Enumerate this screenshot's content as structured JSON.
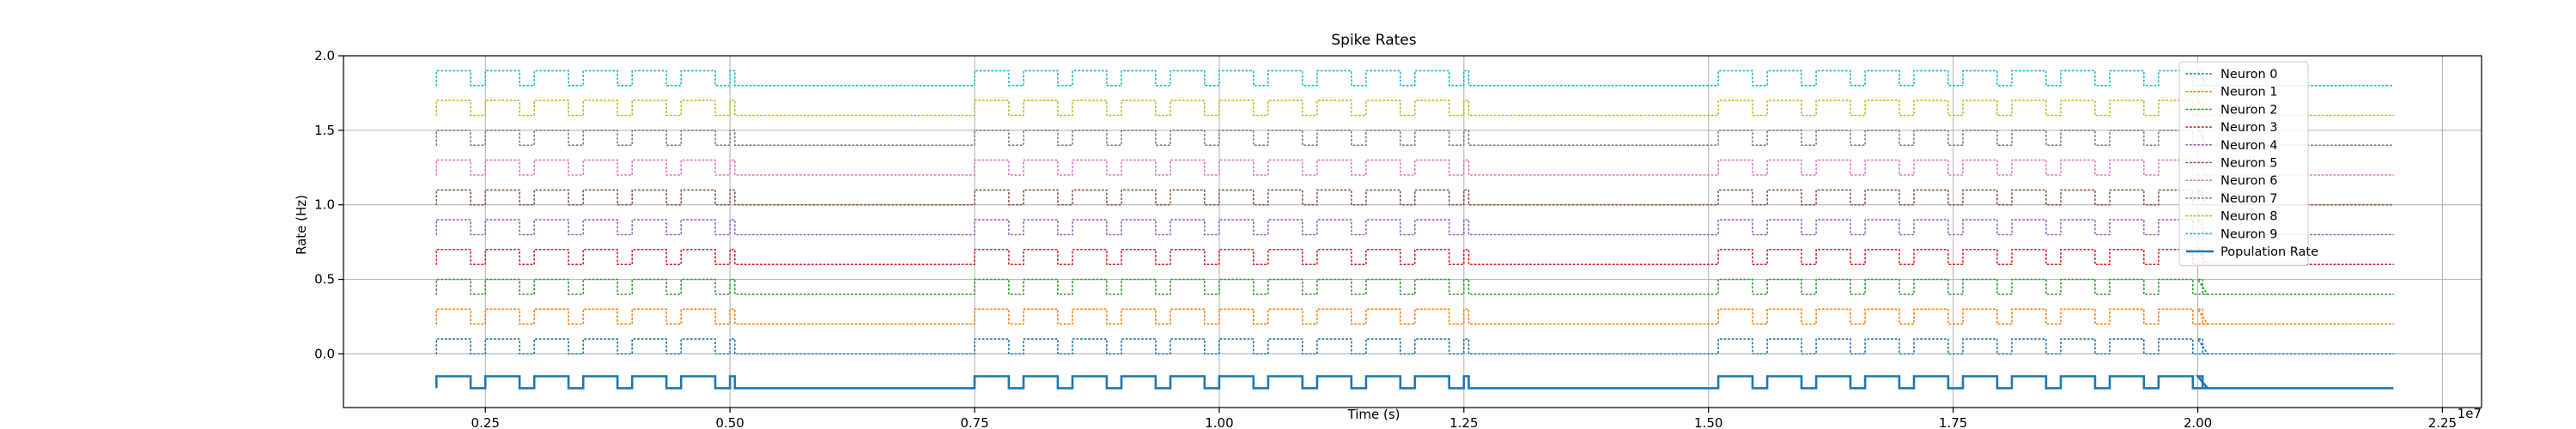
{
  "chart_data": {
    "type": "line",
    "title": "Spike Rates",
    "xlabel": "Time (s)",
    "ylabel": "Rate (Hz)",
    "x_offset_label": "1e7",
    "xlim": [
      1.05,
      22.9
    ],
    "ylim": [
      -0.36,
      2.0
    ],
    "x_ticks": [
      2.5,
      5.0,
      7.5,
      10.0,
      12.5,
      15.0,
      17.5,
      20.0,
      22.5
    ],
    "x_tick_labels": [
      "0.25",
      "0.50",
      "0.75",
      "1.00",
      "1.25",
      "1.50",
      "1.75",
      "2.00",
      "2.25"
    ],
    "y_ticks": [
      0.0,
      0.5,
      1.0,
      1.5,
      2.0
    ],
    "y_tick_labels": [
      "0.0",
      "0.5",
      "1.0",
      "1.5",
      "2.0"
    ],
    "grid": true,
    "legend_position": "upper-right",
    "x_start": 2.0,
    "x_end": 22.0,
    "burst_windows": [
      [
        2.0,
        5.0
      ],
      [
        7.5,
        12.5
      ],
      [
        15.1,
        20.0
      ]
    ],
    "burst_period": 0.5,
    "series": [
      {
        "name": "Neuron 0",
        "color": "#1f77b4",
        "style": "dotted",
        "baseline": 0.0,
        "high": 0.1,
        "low": 0.0
      },
      {
        "name": "Neuron 1",
        "color": "#ff7f0e",
        "style": "dotted",
        "baseline": 0.2,
        "high": 0.3,
        "low": 0.2
      },
      {
        "name": "Neuron 2",
        "color": "#2ca02c",
        "style": "dotted",
        "baseline": 0.4,
        "high": 0.5,
        "low": 0.4
      },
      {
        "name": "Neuron 3",
        "color": "#d62728",
        "style": "dotted",
        "baseline": 0.6,
        "high": 0.7,
        "low": 0.6
      },
      {
        "name": "Neuron 4",
        "color": "#9467bd",
        "style": "dotted",
        "baseline": 0.8,
        "high": 0.9,
        "low": 0.8
      },
      {
        "name": "Neuron 5",
        "color": "#8c564b",
        "style": "dotted",
        "baseline": 1.0,
        "high": 1.1,
        "low": 1.0
      },
      {
        "name": "Neuron 6",
        "color": "#e377c2",
        "style": "dotted",
        "baseline": 1.2,
        "high": 1.3,
        "low": 1.2
      },
      {
        "name": "Neuron 7",
        "color": "#7f7f7f",
        "style": "dotted",
        "baseline": 1.4,
        "high": 1.5,
        "low": 1.4
      },
      {
        "name": "Neuron 8",
        "color": "#bcbd22",
        "style": "dotted",
        "baseline": 1.6,
        "high": 1.7,
        "low": 1.6
      },
      {
        "name": "Neuron 9",
        "color": "#17becf",
        "style": "dotted",
        "baseline": 1.8,
        "high": 1.9,
        "low": 1.8
      },
      {
        "name": "Population Rate",
        "color": "#1f77b4",
        "style": "solid",
        "baseline": -0.23,
        "high": -0.15,
        "low": -0.23
      }
    ]
  }
}
